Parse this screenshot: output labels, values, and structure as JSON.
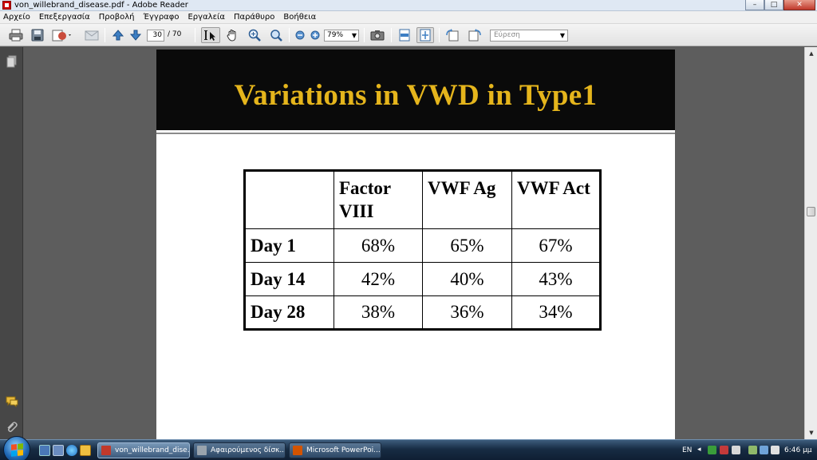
{
  "window": {
    "title": "von_willebrand_disease.pdf - Adobe Reader",
    "minimize": "–",
    "maximize": "□",
    "close": "✕"
  },
  "menu": {
    "items": [
      "Αρχείο",
      "Επεξεργασία",
      "Προβολή",
      "Έγγραφο",
      "Εργαλεία",
      "Παράθυρο",
      "Βοήθεια"
    ]
  },
  "toolbar": {
    "page_current": "30",
    "page_total": "/ 70",
    "zoom": "79%",
    "find_placeholder": "Εύρεση",
    "icons": [
      "print-icon",
      "save-icon",
      "share-icon",
      "email-icon",
      "prev-page-icon",
      "next-page-icon",
      "select-tool-icon",
      "hand-tool-icon",
      "zoom-in-tool-icon",
      "marquee-zoom-icon",
      "zoom-out-icon",
      "zoom-in-icon",
      "snapshot-icon",
      "fit-width-icon",
      "fit-page-icon",
      "rotate-icon",
      "rotate-left-icon"
    ]
  },
  "slide": {
    "title": "Variations in VWD in Type1",
    "table": {
      "headers": [
        "",
        "Factor VIII",
        "VWF Ag",
        "VWF Act"
      ],
      "rows": [
        {
          "label": "Day 1",
          "values": [
            "68%",
            "65%",
            "67%"
          ]
        },
        {
          "label": "Day 14",
          "values": [
            "42%",
            "40%",
            "43%"
          ]
        },
        {
          "label": "Day 28",
          "values": [
            "38%",
            "36%",
            "34%"
          ]
        }
      ]
    }
  },
  "taskbar": {
    "tasks": [
      {
        "label": "von_willebrand_dise...",
        "icon_color": "#c0392b"
      },
      {
        "label": "Αφαιρούμενος δίσκ...",
        "icon_color": "#9aa4ad"
      },
      {
        "label": "Microsoft PowerPoi...",
        "icon_color": "#d35400"
      }
    ],
    "language": "EN",
    "clock": "6:46 μμ"
  },
  "colors": {
    "slide_title": "#e5b51c",
    "slide_header_bg": "#0a0a0a"
  }
}
